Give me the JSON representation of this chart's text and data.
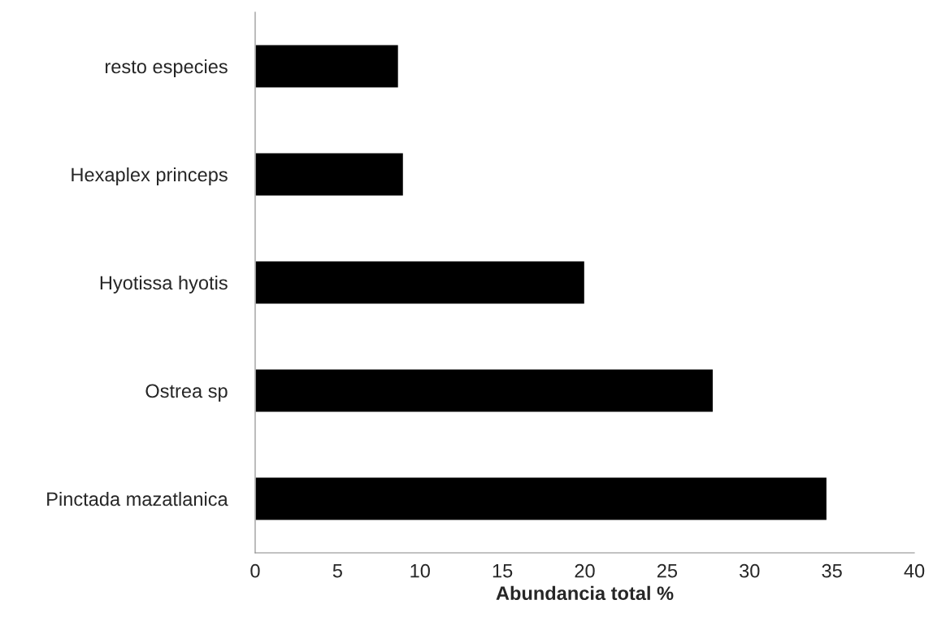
{
  "chart_data": {
    "type": "bar",
    "orientation": "horizontal",
    "categories": [
      "resto especies",
      "Hexaplex princeps",
      "Hyotissa hyotis",
      "Ostrea sp",
      "Pinctada mazatlanica"
    ],
    "values": [
      8.7,
      9.0,
      20.0,
      27.8,
      34.7
    ],
    "color": "#000000",
    "xlabel": "Abundancia total %",
    "xlim": [
      0,
      40
    ],
    "xticks": [
      0,
      5,
      10,
      15,
      20,
      25,
      30,
      35,
      40
    ],
    "grid": false,
    "legend": false
  }
}
